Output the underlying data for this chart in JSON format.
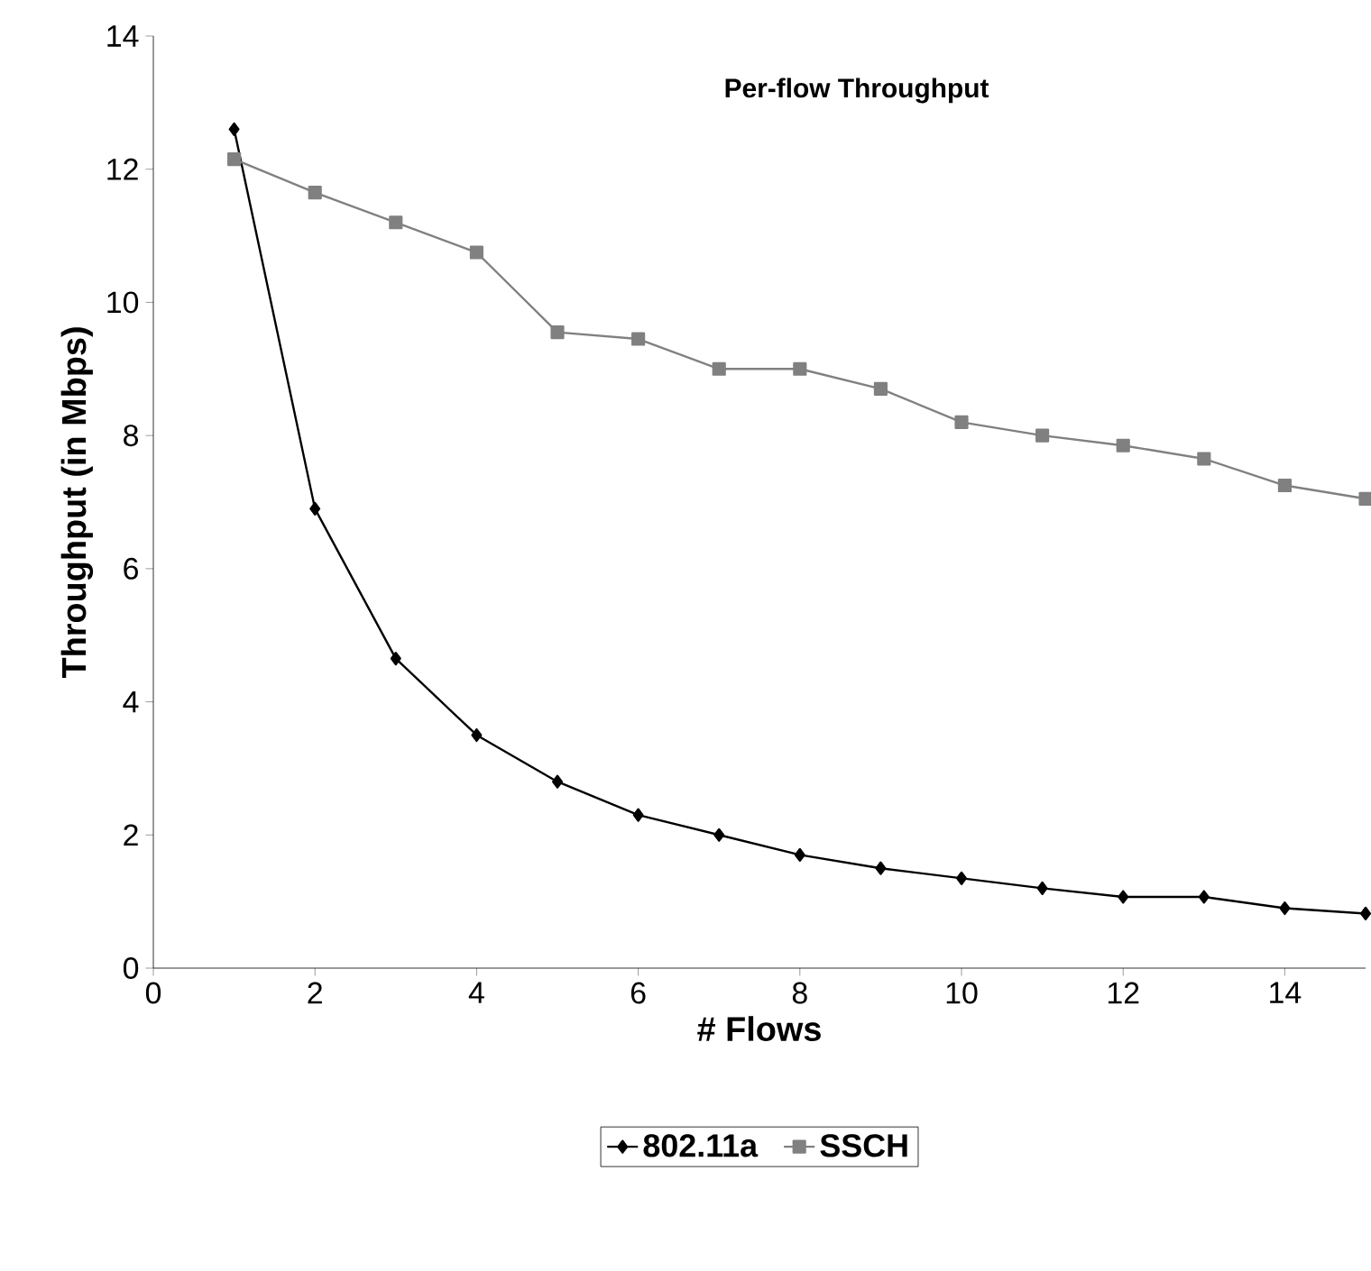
{
  "chart_data": {
    "type": "line",
    "title": "Per-flow Throughput",
    "xlabel": "# Flows",
    "ylabel": "Throughput (in Mbps)",
    "x": [
      1,
      2,
      3,
      4,
      5,
      6,
      7,
      8,
      9,
      10,
      11,
      12,
      13,
      14,
      15
    ],
    "series": [
      {
        "name": "802.11a",
        "color": "#000000",
        "marker": "diamond",
        "values": [
          12.6,
          6.9,
          4.65,
          3.5,
          2.8,
          2.3,
          2.0,
          1.7,
          1.5,
          1.35,
          1.2,
          1.07,
          1.07,
          0.9,
          0.82
        ]
      },
      {
        "name": "SSCH",
        "color": "#808080",
        "marker": "square",
        "values": [
          12.15,
          11.65,
          11.2,
          10.75,
          9.55,
          9.45,
          9.0,
          9.0,
          8.7,
          8.2,
          8.0,
          7.85,
          7.65,
          7.25,
          7.05
        ]
      }
    ],
    "xlim": [
      0,
      15
    ],
    "xticks": [
      0,
      2,
      4,
      6,
      8,
      10,
      12,
      14
    ],
    "ylim": [
      0,
      14
    ],
    "yticks": [
      0,
      2,
      4,
      6,
      8,
      10,
      12,
      14
    ],
    "grid": false,
    "legend": "bottom",
    "line_style": "solid"
  }
}
